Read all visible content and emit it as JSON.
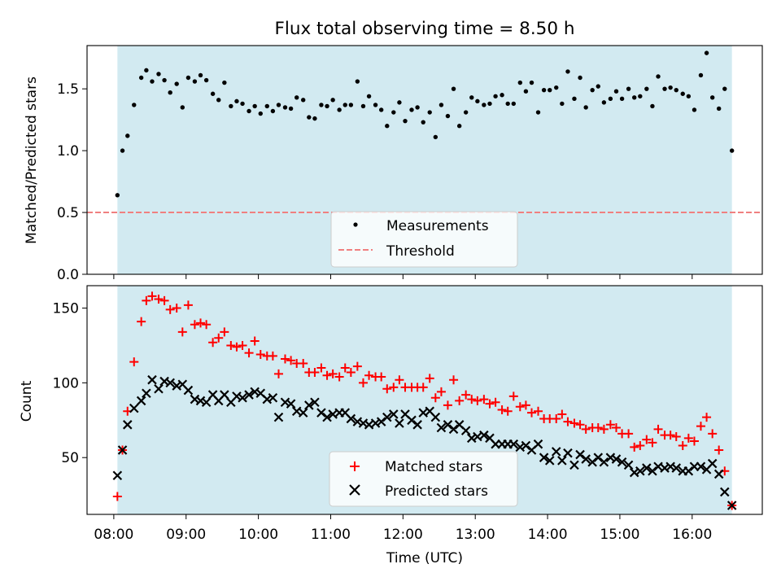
{
  "chart_data": [
    {
      "type": "scatter",
      "title": "Flux total observing time = 8.50 h",
      "xlabel": "",
      "ylabel": "Matched/Predicted stars",
      "ylim": [
        0,
        1.85
      ],
      "yticks": [
        0.0,
        0.5,
        1.0,
        1.5
      ],
      "ytick_labels": [
        "0.0",
        "0.5",
        "1.0",
        "1.5"
      ],
      "xlim_hours": [
        7.63,
        16.97
      ],
      "shaded_span_hours": [
        8.05,
        16.55
      ],
      "shade_color": "#add8e6",
      "legend": {
        "placement": "lower-center",
        "entries": [
          "Measurements",
          "Threshold"
        ]
      },
      "threshold": {
        "name": "Threshold",
        "value": 0.5,
        "color": "#f08080",
        "style": "dashed"
      },
      "series": [
        {
          "name": "Measurements",
          "color": "#000000",
          "marker": "dot",
          "x_hours": [
            8.05,
            8.12,
            8.19,
            8.28,
            8.38,
            8.45,
            8.53,
            8.62,
            8.7,
            8.78,
            8.87,
            8.95,
            9.03,
            9.12,
            9.2,
            9.28,
            9.37,
            9.45,
            9.53,
            9.62,
            9.7,
            9.78,
            9.87,
            9.95,
            10.03,
            10.12,
            10.2,
            10.28,
            10.37,
            10.45,
            10.53,
            10.62,
            10.7,
            10.78,
            10.87,
            10.95,
            11.03,
            11.12,
            11.2,
            11.28,
            11.37,
            11.45,
            11.53,
            11.62,
            11.7,
            11.78,
            11.87,
            11.95,
            12.03,
            12.12,
            12.2,
            12.28,
            12.37,
            12.45,
            12.53,
            12.62,
            12.7,
            12.78,
            12.87,
            12.95,
            13.03,
            13.12,
            13.2,
            13.28,
            13.37,
            13.45,
            13.53,
            13.62,
            13.7,
            13.78,
            13.87,
            13.95,
            14.03,
            14.12,
            14.2,
            14.28,
            14.37,
            14.45,
            14.53,
            14.62,
            14.7,
            14.78,
            14.87,
            14.95,
            15.03,
            15.12,
            15.2,
            15.28,
            15.37,
            15.45,
            15.53,
            15.62,
            15.7,
            15.78,
            15.87,
            15.95,
            16.03,
            16.12,
            16.2,
            16.28,
            16.37,
            16.45,
            16.55
          ],
          "y": [
            0.64,
            1.0,
            1.12,
            1.37,
            1.59,
            1.65,
            1.56,
            1.62,
            1.57,
            1.47,
            1.54,
            1.35,
            1.59,
            1.56,
            1.61,
            1.57,
            1.46,
            1.41,
            1.55,
            1.36,
            1.4,
            1.38,
            1.32,
            1.36,
            1.3,
            1.36,
            1.32,
            1.37,
            1.35,
            1.34,
            1.43,
            1.41,
            1.27,
            1.26,
            1.37,
            1.36,
            1.41,
            1.33,
            1.37,
            1.37,
            1.56,
            1.36,
            1.44,
            1.37,
            1.33,
            1.2,
            1.31,
            1.39,
            1.24,
            1.33,
            1.35,
            1.23,
            1.31,
            1.11,
            1.37,
            1.28,
            1.5,
            1.2,
            1.31,
            1.43,
            1.4,
            1.37,
            1.38,
            1.44,
            1.45,
            1.38,
            1.38,
            1.55,
            1.48,
            1.55,
            1.31,
            1.49,
            1.49,
            1.51,
            1.38,
            1.64,
            1.42,
            1.59,
            1.35,
            1.49,
            1.52,
            1.39,
            1.42,
            1.48,
            1.42,
            1.5,
            1.43,
            1.44,
            1.5,
            1.36,
            1.6,
            1.5,
            1.51,
            1.49,
            1.46,
            1.44,
            1.33,
            1.61,
            1.79,
            1.43,
            1.34,
            1.5,
            1.0
          ]
        }
      ]
    },
    {
      "type": "scatter",
      "title": "",
      "xlabel": "Time (UTC)",
      "ylabel": "Count",
      "ylim": [
        12,
        165
      ],
      "yticks": [
        50,
        100,
        150
      ],
      "ytick_labels": [
        "50",
        "100",
        "150"
      ],
      "xlim_hours": [
        7.63,
        16.97
      ],
      "xticks_hours": [
        8,
        9,
        10,
        11,
        12,
        13,
        14,
        15,
        16
      ],
      "xtick_labels": [
        "08:00",
        "09:00",
        "10:00",
        "11:00",
        "12:00",
        "13:00",
        "14:00",
        "15:00",
        "16:00"
      ],
      "shaded_span_hours": [
        8.05,
        16.55
      ],
      "shade_color": "#add8e6",
      "legend": {
        "placement": "lower-center",
        "entries": [
          "Matched stars",
          "Predicted stars"
        ]
      },
      "series": [
        {
          "name": "Matched stars",
          "color": "#ff0000",
          "marker": "plus",
          "x_hours": [
            8.05,
            8.12,
            8.19,
            8.28,
            8.38,
            8.45,
            8.53,
            8.62,
            8.7,
            8.78,
            8.87,
            8.95,
            9.03,
            9.12,
            9.2,
            9.28,
            9.37,
            9.45,
            9.53,
            9.62,
            9.7,
            9.78,
            9.87,
            9.95,
            10.03,
            10.12,
            10.2,
            10.28,
            10.37,
            10.45,
            10.53,
            10.62,
            10.7,
            10.78,
            10.87,
            10.95,
            11.03,
            11.12,
            11.2,
            11.28,
            11.37,
            11.45,
            11.53,
            11.62,
            11.7,
            11.78,
            11.87,
            11.95,
            12.03,
            12.12,
            12.2,
            12.28,
            12.37,
            12.45,
            12.53,
            12.62,
            12.7,
            12.78,
            12.87,
            12.95,
            13.03,
            13.12,
            13.2,
            13.28,
            13.37,
            13.45,
            13.53,
            13.62,
            13.7,
            13.78,
            13.87,
            13.95,
            14.03,
            14.12,
            14.2,
            14.28,
            14.37,
            14.45,
            14.53,
            14.62,
            14.7,
            14.78,
            14.87,
            14.95,
            15.03,
            15.12,
            15.2,
            15.28,
            15.37,
            15.45,
            15.53,
            15.62,
            15.7,
            15.78,
            15.87,
            15.95,
            16.03,
            16.12,
            16.2,
            16.28,
            16.37,
            16.45,
            16.55
          ],
          "y": [
            24,
            55,
            81,
            114,
            141,
            155,
            158,
            156,
            155,
            149,
            150,
            134,
            152,
            139,
            140,
            139,
            127,
            130,
            134,
            125,
            124,
            125,
            120,
            128,
            119,
            118,
            118,
            106,
            116,
            115,
            113,
            113,
            107,
            107,
            110,
            105,
            106,
            104,
            110,
            107,
            111,
            100,
            105,
            104,
            104,
            96,
            97,
            102,
            97,
            97,
            97,
            97,
            103,
            90,
            94,
            85,
            102,
            88,
            92,
            89,
            88,
            89,
            86,
            87,
            82,
            81,
            91,
            84,
            85,
            80,
            81,
            76,
            76,
            76,
            79,
            74,
            73,
            72,
            69,
            70,
            70,
            69,
            72,
            70,
            66,
            66,
            57,
            58,
            62,
            60,
            69,
            65,
            65,
            64,
            58,
            63,
            61,
            71,
            77,
            66,
            55,
            41,
            18
          ]
        },
        {
          "name": "Predicted stars",
          "color": "#000000",
          "marker": "x",
          "x_hours": [
            8.05,
            8.12,
            8.19,
            8.28,
            8.38,
            8.45,
            8.53,
            8.62,
            8.7,
            8.78,
            8.87,
            8.95,
            9.03,
            9.12,
            9.2,
            9.28,
            9.37,
            9.45,
            9.53,
            9.62,
            9.7,
            9.78,
            9.87,
            9.95,
            10.03,
            10.12,
            10.2,
            10.28,
            10.37,
            10.45,
            10.53,
            10.62,
            10.7,
            10.78,
            10.87,
            10.95,
            11.03,
            11.12,
            11.2,
            11.28,
            11.37,
            11.45,
            11.53,
            11.62,
            11.7,
            11.78,
            11.87,
            11.95,
            12.03,
            12.12,
            12.2,
            12.28,
            12.37,
            12.45,
            12.53,
            12.62,
            12.7,
            12.78,
            12.87,
            12.95,
            13.03,
            13.12,
            13.2,
            13.28,
            13.37,
            13.45,
            13.53,
            13.62,
            13.7,
            13.78,
            13.87,
            13.95,
            14.03,
            14.12,
            14.2,
            14.28,
            14.37,
            14.45,
            14.53,
            14.62,
            14.7,
            14.78,
            14.87,
            14.95,
            15.03,
            15.12,
            15.2,
            15.28,
            15.37,
            15.45,
            15.53,
            15.62,
            15.7,
            15.78,
            15.87,
            15.95,
            16.03,
            16.12,
            16.2,
            16.28,
            16.37,
            16.45,
            16.55
          ],
          "y": [
            38,
            55,
            72,
            83,
            88,
            93,
            102,
            96,
            101,
            100,
            98,
            99,
            95,
            89,
            88,
            87,
            92,
            88,
            92,
            87,
            91,
            90,
            92,
            94,
            93,
            89,
            90,
            77,
            87,
            86,
            81,
            80,
            85,
            87,
            80,
            77,
            79,
            80,
            80,
            76,
            74,
            73,
            72,
            73,
            74,
            77,
            79,
            73,
            79,
            75,
            72,
            80,
            81,
            77,
            70,
            72,
            69,
            72,
            68,
            63,
            64,
            65,
            63,
            59,
            59,
            59,
            59,
            57,
            58,
            55,
            59,
            50,
            48,
            54,
            48,
            53,
            45,
            52,
            49,
            47,
            50,
            47,
            50,
            49,
            47,
            45,
            40,
            41,
            43,
            41,
            44,
            43,
            44,
            43,
            41,
            41,
            44,
            44,
            42,
            46,
            39,
            27,
            18
          ]
        }
      ]
    }
  ]
}
